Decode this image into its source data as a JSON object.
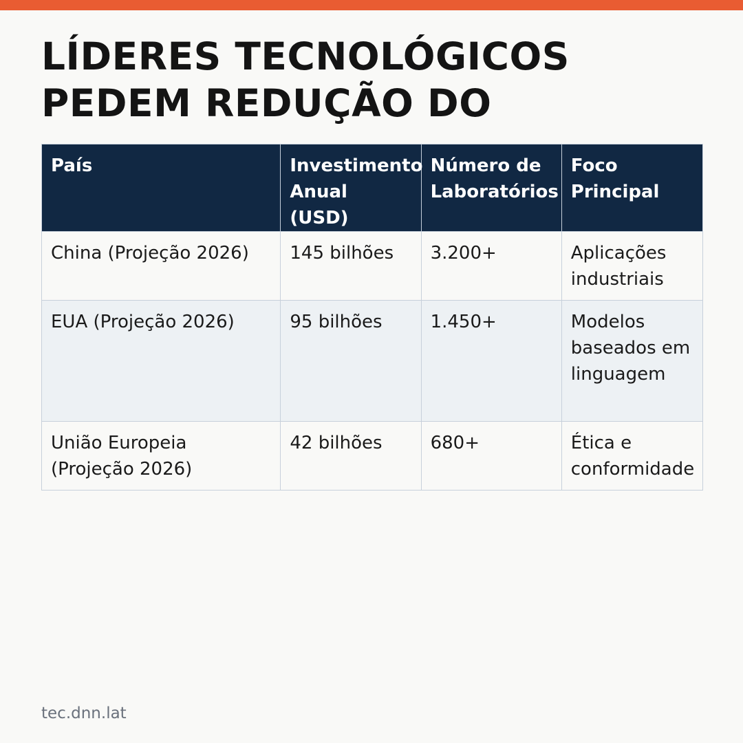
{
  "brand": {
    "accent_color": "#e95c32",
    "header_color": "#112843"
  },
  "headline": "LÍDERES TECNOLÓGICOS PEDEM REDUÇÃO DO",
  "table": {
    "headers": [
      "País",
      "Investimento Anual (USD)",
      "Número de Laboratórios",
      "Foco Principal"
    ],
    "rows": [
      [
        "China (Projeção 2026)",
        "145 bilhões",
        "3.200+",
        "Aplicações industriais"
      ],
      [
        "EUA (Projeção 2026)",
        "95 bilhões",
        "1.450+",
        "Modelos baseados em linguagem"
      ],
      [
        "União Europeia (Projeção 2026)",
        "42 bilhões",
        "680+",
        "Ética e conformidade"
      ]
    ]
  },
  "footer": {
    "source": "tec.dnn.lat"
  }
}
